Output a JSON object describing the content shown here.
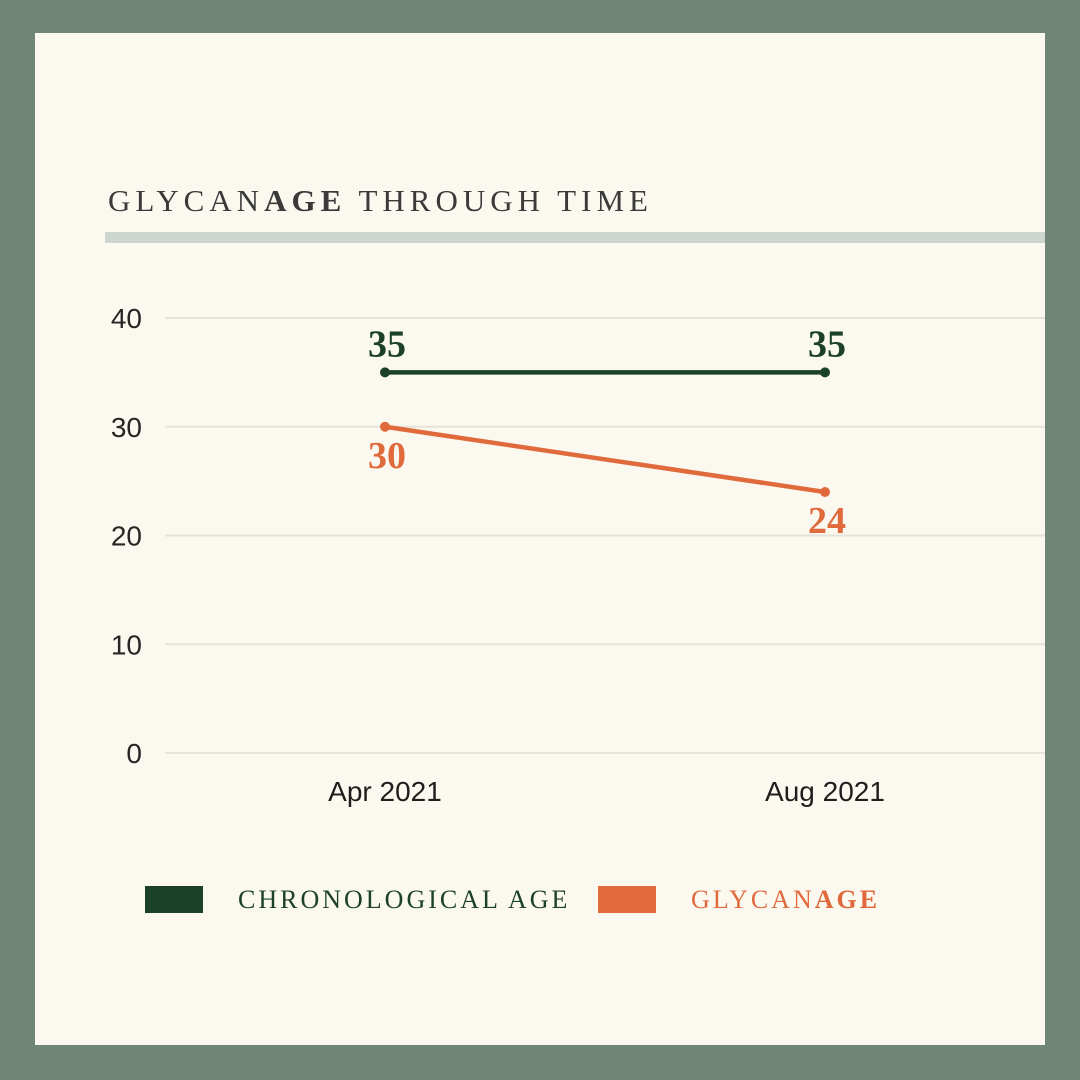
{
  "title": {
    "part_regular": "GLYCAN",
    "part_bold": "AGE",
    "part_rest": " THROUGH TIME"
  },
  "colors": {
    "background_border": "#6e8578",
    "card": "#fbf9ef",
    "divider": "#ccd6cf",
    "gridline": "#e6e4da",
    "title_text": "#3a3a3a",
    "axis_text": "#262626",
    "chronological_green": "#1c4129",
    "glycan_orange": "#e16a3d"
  },
  "chart_data": {
    "type": "line",
    "title": "GLYCANAGE THROUGH TIME",
    "categories": [
      "Apr 2021",
      "Aug 2021"
    ],
    "series": [
      {
        "name": "CHRONOLOGICAL AGE",
        "values": [
          35,
          35
        ],
        "color": "#1c4129",
        "label_position": "above"
      },
      {
        "name": "GLYCANAGE",
        "values": [
          30,
          24
        ],
        "color": "#e16a3d",
        "label_position": "below"
      }
    ],
    "y_ticks": [
      0,
      10,
      20,
      30,
      40
    ],
    "ylim": [
      0,
      40
    ],
    "xlabel": "",
    "ylabel": "",
    "grid": "horizontal",
    "legend_position": "bottom"
  },
  "legend": {
    "items": [
      {
        "regular": "CHRONOLOGICAL AGE",
        "bold": "",
        "color": "#1c4129"
      },
      {
        "regular": "GLYCAN",
        "bold": "AGE",
        "color": "#e16a3d"
      }
    ]
  }
}
